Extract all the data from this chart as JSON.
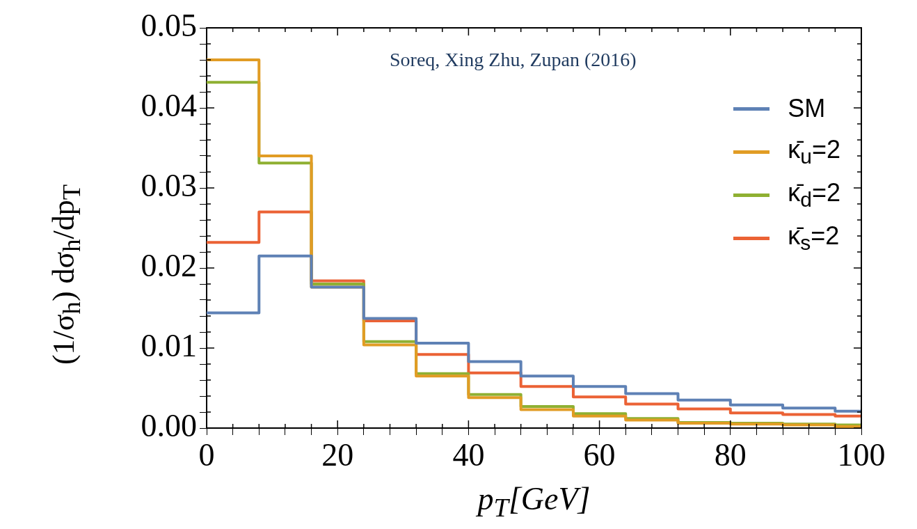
{
  "chart_data": {
    "type": "histogram",
    "bins": [
      0,
      8,
      16,
      24,
      32,
      40,
      48,
      56,
      64,
      72,
      80,
      88,
      96,
      100
    ],
    "series": [
      {
        "name": "SM",
        "color": "#5e81b5",
        "values": [
          0.0144,
          0.0215,
          0.0176,
          0.0137,
          0.0106,
          0.0083,
          0.0065,
          0.0052,
          0.0043,
          0.0035,
          0.0029,
          0.0025,
          0.0021
        ]
      },
      {
        "name": "κ̄$_{u}$=2",
        "color": "#e19c24",
        "values": [
          0.046,
          0.034,
          0.0176,
          0.0104,
          0.0065,
          0.0038,
          0.0023,
          0.0015,
          0.001,
          0.0006,
          0.0005,
          0.0004,
          0.0002
        ]
      },
      {
        "name": "κ̄$_{d}$=2",
        "color": "#8fb032",
        "values": [
          0.0432,
          0.0331,
          0.018,
          0.0108,
          0.0068,
          0.0042,
          0.0027,
          0.0018,
          0.0012,
          0.0007,
          0.0006,
          0.0005,
          0.0004
        ]
      },
      {
        "name": "κ̄$_{s}$=2",
        "color": "#eb6235",
        "values": [
          0.0232,
          0.027,
          0.0184,
          0.0134,
          0.0092,
          0.0069,
          0.0052,
          0.0039,
          0.003,
          0.0024,
          0.0019,
          0.0017,
          0.0015
        ]
      }
    ],
    "xlabel": "p$_{T}$[GeV]",
    "ylabel": "(1/σ$_{h}$) dσ$_{h}$/dp$_{T}$",
    "annotations": [
      "Soreq, Xing Zhu, Zupan (2016)"
    ],
    "xlim": [
      0,
      100
    ],
    "xticks": [
      0,
      {
        "value": 4,
        "label": null
      },
      {
        "value": 8,
        "label": null
      },
      {
        "value": 12,
        "label": null
      },
      {
        "value": 16,
        "label": null
      },
      20,
      {
        "value": 24,
        "label": null
      },
      {
        "value": 28,
        "label": null
      },
      {
        "value": 32,
        "label": null
      },
      {
        "value": 36,
        "label": null
      },
      40,
      {
        "value": 44,
        "label": null
      },
      {
        "value": 48,
        "label": null
      },
      {
        "value": 52,
        "label": null
      },
      {
        "value": 56,
        "label": null
      },
      60,
      {
        "value": 64,
        "label": null
      },
      {
        "value": 68,
        "label": null
      },
      {
        "value": 72,
        "label": null
      },
      {
        "value": 76,
        "label": null
      },
      80,
      {
        "value": 84,
        "label": null
      },
      {
        "value": 88,
        "label": null
      },
      {
        "value": 92,
        "label": null
      },
      {
        "value": 96,
        "label": null
      },
      100
    ],
    "ylim": [
      0,
      0.05
    ],
    "yticks": [
      {
        "value": 0,
        "label": "0.00"
      },
      {
        "value": 0.002,
        "label": null
      },
      {
        "value": 0.004,
        "label": null
      },
      {
        "value": 0.006,
        "label": null
      },
      {
        "value": 0.008,
        "label": null
      },
      {
        "value": 0.01,
        "label": "0.01"
      },
      {
        "value": 0.012,
        "label": null
      },
      {
        "value": 0.014,
        "label": null
      },
      {
        "value": 0.016,
        "label": null
      },
      {
        "value": 0.018,
        "label": null
      },
      {
        "value": 0.02,
        "label": "0.02"
      },
      {
        "value": 0.022,
        "label": null
      },
      {
        "value": 0.024,
        "label": null
      },
      {
        "value": 0.026,
        "label": null
      },
      {
        "value": 0.028,
        "label": null
      },
      {
        "value": 0.03,
        "label": "0.03"
      },
      {
        "value": 0.032,
        "label": null
      },
      {
        "value": 0.034,
        "label": null
      },
      {
        "value": 0.036,
        "label": null
      },
      {
        "value": 0.038,
        "label": null
      },
      {
        "value": 0.04,
        "label": "0.04"
      },
      {
        "value": 0.042,
        "label": null
      },
      {
        "value": 0.044,
        "label": null
      },
      {
        "value": 0.046,
        "label": null
      },
      {
        "value": 0.048,
        "label": null
      },
      {
        "value": 0.05,
        "label": "0.05"
      }
    ],
    "legend": "top right",
    "grid": false
  }
}
